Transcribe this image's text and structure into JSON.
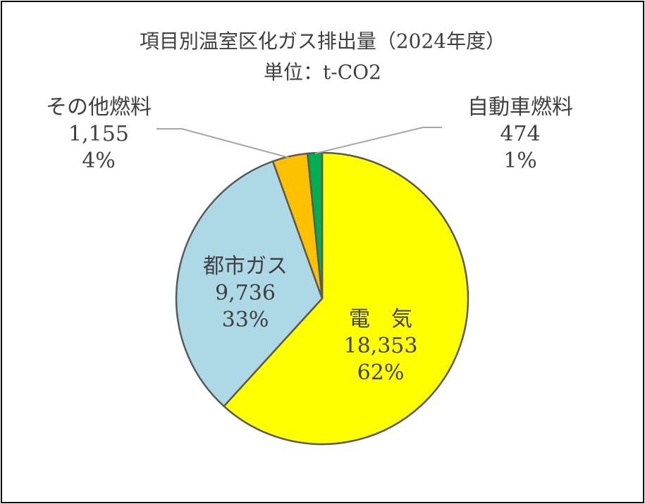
{
  "chart_data": {
    "type": "pie",
    "title": "項目別温室区化ガス排出量（2024年度）",
    "subtitle": "単位：t-CO2",
    "slices": [
      {
        "label": "電　気",
        "value": 18353,
        "value_text": "18,353",
        "percent_text": "62%",
        "color": "#FFFF00"
      },
      {
        "label": "都市ガス",
        "value": 9736,
        "value_text": "9,736",
        "percent_text": "33%",
        "color": "#ADD8E6"
      },
      {
        "label": "その他燃料",
        "value": 1155,
        "value_text": "1,155",
        "percent_text": "4%",
        "color": "#FFC000"
      },
      {
        "label": "自動車燃料",
        "value": 474,
        "value_text": "474",
        "percent_text": "1%",
        "color": "#00B050"
      }
    ],
    "start_angle": "top",
    "direction": "clockwise",
    "legend": "none"
  }
}
